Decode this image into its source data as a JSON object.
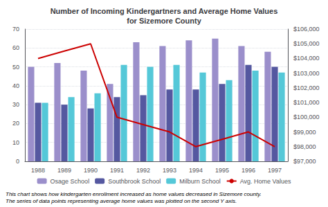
{
  "chart_data": {
    "type": "bar",
    "title": "Number of Incoming Kindergartners and Average Home Values\nfor Sizemore County",
    "annotations": [
      "This chart shows how kindergarten enrollment increased as home values decreased in Sizemore county.\nThe series of data points representing average home values was plotted on the second Y axis."
    ],
    "categories": [
      "1988",
      "1989",
      "1990",
      "1991",
      "1992",
      "1993",
      "1994",
      "1995",
      "1996",
      "1997"
    ],
    "series": [
      {
        "name": "Osage School",
        "color": "#9b8fcb",
        "values": [
          50,
          52,
          48,
          41,
          63,
          61,
          64,
          65,
          61,
          58
        ]
      },
      {
        "name": "Southbrook School",
        "color": "#5558a0",
        "values": [
          31,
          30,
          28,
          34,
          35,
          38,
          38,
          41,
          51,
          50
        ]
      },
      {
        "name": "Milburn School",
        "color": "#55c8d8",
        "values": [
          31,
          34,
          36,
          51,
          50,
          51,
          47,
          43,
          48,
          47
        ]
      },
      {
        "name": "Avg. Home Values",
        "type": "line",
        "axis": "y2",
        "color": "#cc0000",
        "values": [
          104000,
          104500,
          105000,
          100000,
          99500,
          99000,
          98000,
          98500,
          99000,
          98000
        ]
      }
    ],
    "ylim": [
      0,
      70
    ],
    "yticks": [
      0,
      10,
      20,
      30,
      40,
      50,
      60,
      70
    ],
    "y2lim": [
      97000,
      106000
    ],
    "y2ticks": [
      {
        "value": 97000,
        "label": "$97,000"
      },
      {
        "value": 98000,
        "label": "$98,000"
      },
      {
        "value": 99000,
        "label": "$99,000"
      },
      {
        "value": 100000,
        "label": "$100,000"
      },
      {
        "value": 101000,
        "label": "$101,000"
      },
      {
        "value": 102000,
        "label": "$102,000"
      },
      {
        "value": 103000,
        "label": "$103,000"
      },
      {
        "value": 104000,
        "label": "$104,000"
      },
      {
        "value": 105000,
        "label": "$105,000"
      },
      {
        "value": 106000,
        "label": "$106,000"
      }
    ],
    "grid": true,
    "legend": "bottom"
  }
}
